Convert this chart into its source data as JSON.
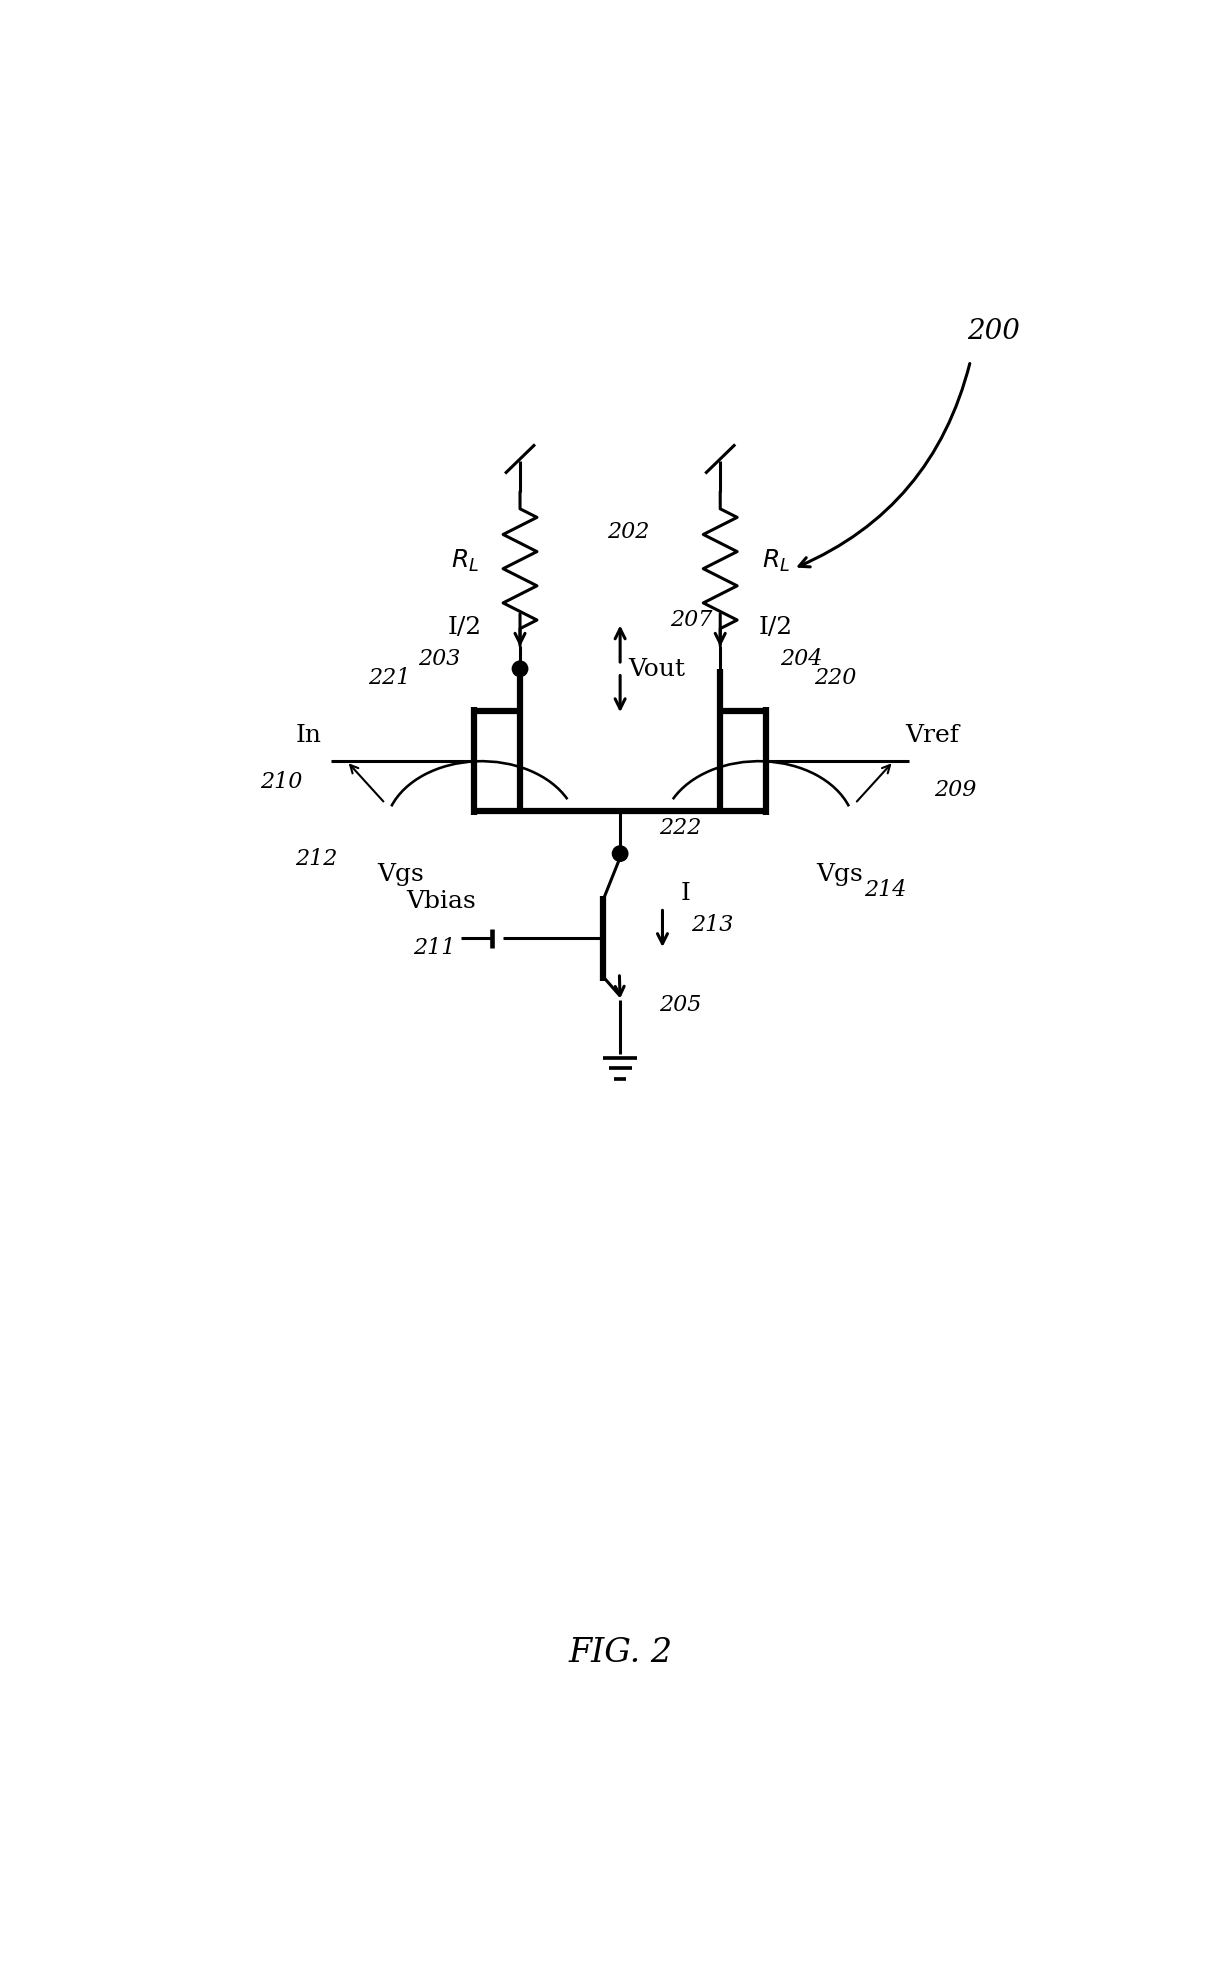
{
  "title": "FIG. 2",
  "label_200": "200",
  "label_202": "202",
  "label_203": "203",
  "label_204": "204",
  "label_205": "205",
  "label_207": "207",
  "label_209": "209",
  "label_210": "210",
  "label_211": "211",
  "label_212": "212",
  "label_213": "213",
  "label_214": "214",
  "label_220": "220",
  "label_221": "221",
  "label_222": "222",
  "text_RL": "$R_L$",
  "text_I2": "I/2",
  "text_Vout": "Vout",
  "text_Vref": "Vref",
  "text_Vgs_l": "Vgs",
  "text_Vgs_r": "Vgs",
  "text_In": "In",
  "text_Vbias": "Vbias",
  "text_I": "I",
  "bg_color": "#ffffff",
  "line_color": "#000000",
  "linewidth": 2.2,
  "bold_linewidth": 4.5,
  "fontsize_label": 18,
  "fontsize_refnum": 16
}
